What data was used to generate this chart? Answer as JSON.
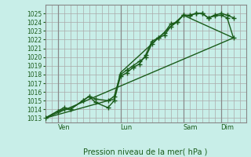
{
  "bg_color": "#c8eee8",
  "grid_color": "#aaaaaa",
  "line_color": "#1a5c1a",
  "marker_color": "#1a5c1a",
  "xlabel": "Pression niveau de la mer( hPa )",
  "ylim": [
    1012.5,
    1026.0
  ],
  "yticks": [
    1013,
    1014,
    1015,
    1016,
    1017,
    1018,
    1019,
    1020,
    1021,
    1022,
    1023,
    1024,
    1025
  ],
  "xtick_labels": [
    "Ven",
    "Lun",
    "Sam",
    "Dim"
  ],
  "xtick_positions": [
    0.5,
    3.0,
    5.5,
    7.0
  ],
  "xvlines": [
    0.5,
    3.0,
    5.5,
    7.0
  ],
  "xlim": [
    0,
    8.0
  ],
  "series1_x": [
    0.0,
    0.5,
    0.75,
    1.0,
    1.5,
    1.75,
    2.0,
    2.5,
    2.75,
    3.0,
    3.25,
    3.5,
    3.75,
    4.0,
    4.25,
    4.5,
    4.75,
    5.0,
    5.25,
    5.5,
    5.75,
    6.0,
    6.25,
    6.5,
    6.75,
    7.0,
    7.25,
    7.5
  ],
  "series1_y": [
    1013.0,
    1013.8,
    1014.0,
    1014.0,
    1015.0,
    1015.5,
    1015.2,
    1015.0,
    1015.5,
    1018.0,
    1018.5,
    1019.0,
    1019.5,
    1020.0,
    1021.5,
    1022.2,
    1022.5,
    1023.5,
    1024.0,
    1024.8,
    1024.8,
    1025.0,
    1025.0,
    1024.5,
    1024.8,
    1025.0,
    1024.8,
    1024.5
  ],
  "series2_x": [
    0.0,
    0.5,
    0.75,
    1.0,
    1.5,
    1.75,
    2.0,
    2.5,
    2.75,
    3.0,
    3.25,
    3.5,
    3.75,
    4.0,
    4.25,
    4.5,
    4.75,
    5.0,
    5.25,
    5.5,
    5.75,
    6.0,
    6.25,
    6.5,
    6.75,
    7.0,
    7.25,
    7.5
  ],
  "series2_y": [
    1013.0,
    1013.8,
    1014.2,
    1014.0,
    1015.0,
    1015.5,
    1014.8,
    1014.2,
    1015.0,
    1017.8,
    1018.2,
    1018.8,
    1019.2,
    1020.2,
    1021.8,
    1022.2,
    1022.8,
    1023.8,
    1024.0,
    1024.8,
    1024.7,
    1025.0,
    1025.0,
    1024.5,
    1024.7,
    1024.8,
    1024.5,
    1022.2
  ],
  "series3_x": [
    0.0,
    7.5
  ],
  "series3_y": [
    1013.0,
    1022.2
  ],
  "series4_x": [
    0.0,
    2.75,
    3.0,
    5.5,
    7.5
  ],
  "series4_y": [
    1013.0,
    1015.2,
    1018.2,
    1024.8,
    1022.2
  ]
}
